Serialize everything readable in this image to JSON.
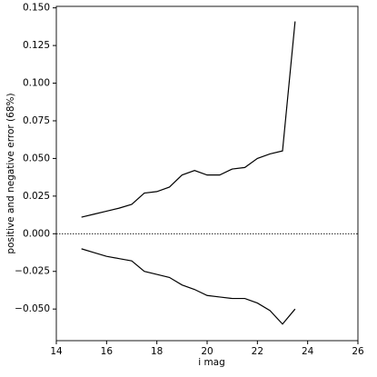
{
  "chart_data": {
    "type": "line",
    "xlabel": "i mag",
    "ylabel": "positive and negative error (68%)",
    "x": [
      15,
      15.5,
      16,
      16.5,
      17,
      17.5,
      18,
      18.5,
      19,
      19.5,
      20,
      20.5,
      21,
      21.5,
      22,
      22.5,
      23,
      23.5
    ],
    "series": [
      {
        "color": "#000000",
        "values": [
          0.011,
          0.013,
          0.015,
          0.017,
          0.0195,
          0.027,
          0.028,
          0.031,
          0.039,
          0.042,
          0.039,
          0.039,
          0.043,
          0.044,
          0.05,
          0.053,
          0.055,
          0.141
        ]
      },
      {
        "color": "#000000",
        "values": [
          -0.01,
          -0.0125,
          -0.015,
          -0.0165,
          -0.018,
          -0.025,
          -0.027,
          -0.029,
          -0.034,
          -0.037,
          -0.041,
          -0.042,
          -0.043,
          -0.043,
          -0.046,
          -0.051,
          -0.06,
          -0.05
        ]
      }
    ],
    "reference_line": 0,
    "xlim": [
      14,
      26
    ],
    "xticks": [
      14,
      16,
      18,
      20,
      22,
      24,
      26
    ],
    "ylim": [
      -0.071,
      0.151
    ],
    "yticks": [
      {
        "value": -0.05,
        "label": "−0.050"
      },
      {
        "value": -0.025,
        "label": "−0.025"
      },
      {
        "value": 0,
        "label": "0.000"
      },
      {
        "value": 0.025,
        "label": "0.025"
      },
      {
        "value": 0.05,
        "label": "0.050"
      },
      {
        "value": 0.075,
        "label": "0.075"
      },
      {
        "value": 0.1,
        "label": "0.100"
      },
      {
        "value": 0.125,
        "label": "0.125"
      },
      {
        "value": 0.15,
        "label": "0.150"
      }
    ]
  }
}
